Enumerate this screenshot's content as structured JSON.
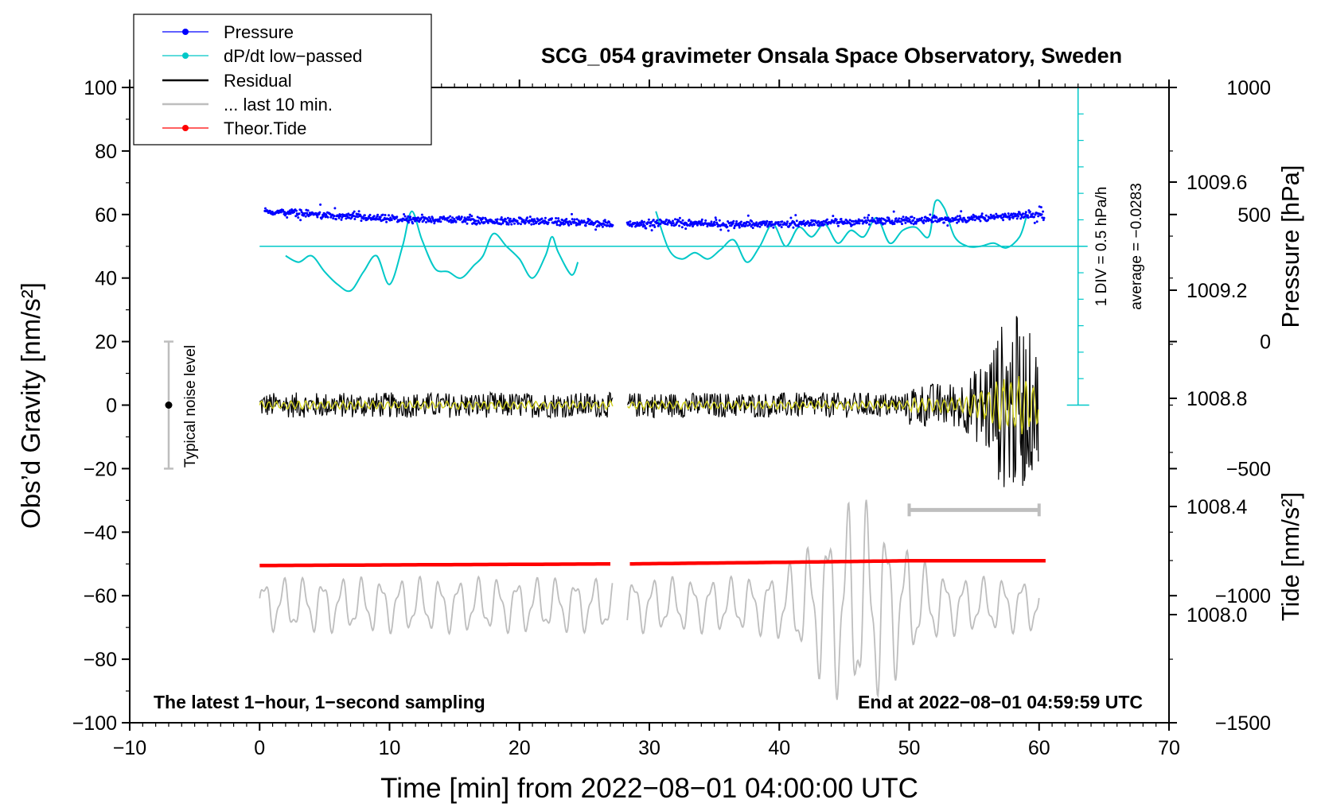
{
  "chart_data": {
    "type": "line",
    "title": "SCG_054 gravimeter Onsala Space Observatory, Sweden",
    "xlabel": "Time [min] from 2022−08−01 04:00:00 UTC",
    "ylabel_left": "Obs’d Gravity [nm/s²]",
    "ylabel_pressure": "Pressure [hPa]",
    "ylabel_tide": "Tide [nm/s²]",
    "xlim": [
      -10,
      70
    ],
    "ylim": [
      -100,
      100
    ],
    "pressure_lim": [
      1007.6,
      1009.95
    ],
    "tide_lim": [
      -1500,
      1000
    ],
    "x_ticks": [
      -10,
      0,
      10,
      20,
      30,
      40,
      50,
      60,
      70
    ],
    "x_tick_labels": [
      "−10",
      "0",
      "10",
      "20",
      "30",
      "40",
      "50",
      "60",
      "70"
    ],
    "y_ticks": [
      100,
      80,
      60,
      40,
      20,
      0,
      -20,
      -40,
      -60,
      -80,
      -100
    ],
    "y_tick_labels": [
      "100",
      "80",
      "60",
      "40",
      "20",
      "0",
      "−20",
      "−40",
      "−60",
      "−80",
      "−100"
    ],
    "pressure_ticks": [
      1009.6,
      1009.2,
      1008.8,
      1008.4,
      1008.0
    ],
    "pressure_tick_labels": [
      "1009.6",
      "1009.2",
      "1008.8",
      "1008.4",
      "1008.0"
    ],
    "tide_ticks": [
      1000,
      500,
      0,
      -500,
      -1000,
      -1500
    ],
    "tide_tick_labels": [
      "1000",
      "500",
      "0",
      "−500",
      "−1000",
      "−1500"
    ],
    "legend": [
      {
        "label": "Pressure",
        "color": "#0000ff",
        "marker": true
      },
      {
        "label": "dP/dt low−passed",
        "color": "#00c8c8",
        "marker": true
      },
      {
        "label": "Residual",
        "color": "#000000",
        "marker": false
      },
      {
        "label": "... last 10 min.",
        "color": "#bebebe",
        "marker": false
      },
      {
        "label": "Theor.Tide",
        "color": "#ff0000",
        "marker": true
      }
    ],
    "dpdt_scale": {
      "label": "1 DIV = 0.5 hPa/h",
      "average_label": "average = −0.0283",
      "x": 63,
      "y_range": [
        0,
        100
      ],
      "baseline": 50
    },
    "noise_indicator": {
      "label": "Typical noise level",
      "x": -7,
      "y": 0,
      "range": [
        -20,
        20
      ]
    },
    "last10_bar": {
      "x_range": [
        50,
        60
      ],
      "y": -33
    },
    "footer_left": "The latest 1−hour, 1−second sampling",
    "footer_right": "End at 2022−08−01 04:59:59 UTC",
    "gap": [
      27.2,
      28.3
    ],
    "series": [
      {
        "name": "Pressure",
        "color": "#0000ff",
        "x": [
          0,
          3,
          6,
          9,
          12,
          15,
          18,
          21,
          24,
          27.2,
          28.3,
          32,
          36,
          40,
          44,
          48,
          52,
          56,
          60
        ],
        "values": [
          61,
          60.5,
          59.5,
          58.8,
          58.3,
          58.5,
          57.8,
          58,
          57.5,
          57,
          57,
          57.5,
          57,
          57,
          57.5,
          58,
          58.3,
          59,
          60
        ]
      },
      {
        "name": "dP/dt low−passed",
        "color": "#00c8c8",
        "x": [
          2,
          3,
          4,
          5,
          6,
          7,
          8,
          9,
          10,
          11,
          11.7,
          12.5,
          13.5,
          14.5,
          15.5,
          16.5,
          17.2,
          18,
          19,
          20,
          21,
          22,
          22.5,
          23,
          24,
          24.5,
          30.5,
          31.5,
          32.5,
          33.5,
          34.5,
          35.5,
          36.5,
          37.5,
          38.5,
          39.5,
          40.5,
          41.5,
          42.5,
          43.5,
          44.5,
          45.5,
          46.5,
          47.5,
          48.5,
          49.5,
          50.5,
          51.5,
          52,
          52.7,
          53.5,
          54.5,
          55.5,
          56.5,
          57.5,
          58.5,
          59
        ],
        "values": [
          47,
          45,
          47,
          42,
          38,
          36,
          42,
          47,
          38,
          50,
          61,
          52,
          43,
          42,
          40,
          44,
          47,
          54,
          50,
          46,
          40,
          47,
          53,
          48,
          41,
          45,
          61,
          49,
          46,
          48,
          46,
          49,
          52,
          45,
          50,
          57,
          50,
          56,
          53,
          57,
          51,
          55,
          53,
          59,
          51,
          55,
          56,
          53,
          64,
          62,
          53,
          50,
          50,
          51,
          49.5,
          53,
          59
        ]
      },
      {
        "name": "Residual",
        "color": "#000000",
        "x_range": [
          0,
          60
        ],
        "amplitude": 4,
        "burst": {
          "center": 58,
          "amplitude": 22
        }
      },
      {
        "name": "Theor.Tide",
        "color": "#ff0000",
        "x": [
          0,
          27.2,
          28.3,
          40,
          50,
          60.5
        ],
        "values": [
          -50.5,
          -50,
          -50,
          -49.5,
          -49,
          -49
        ]
      },
      {
        "name": "... last 10 min.",
        "color": "#bebebe",
        "x_range": [
          0,
          60
        ],
        "baseline": -63,
        "amplitude": 9,
        "burst": {
          "center": 46,
          "amplitude": 26
        }
      }
    ]
  }
}
